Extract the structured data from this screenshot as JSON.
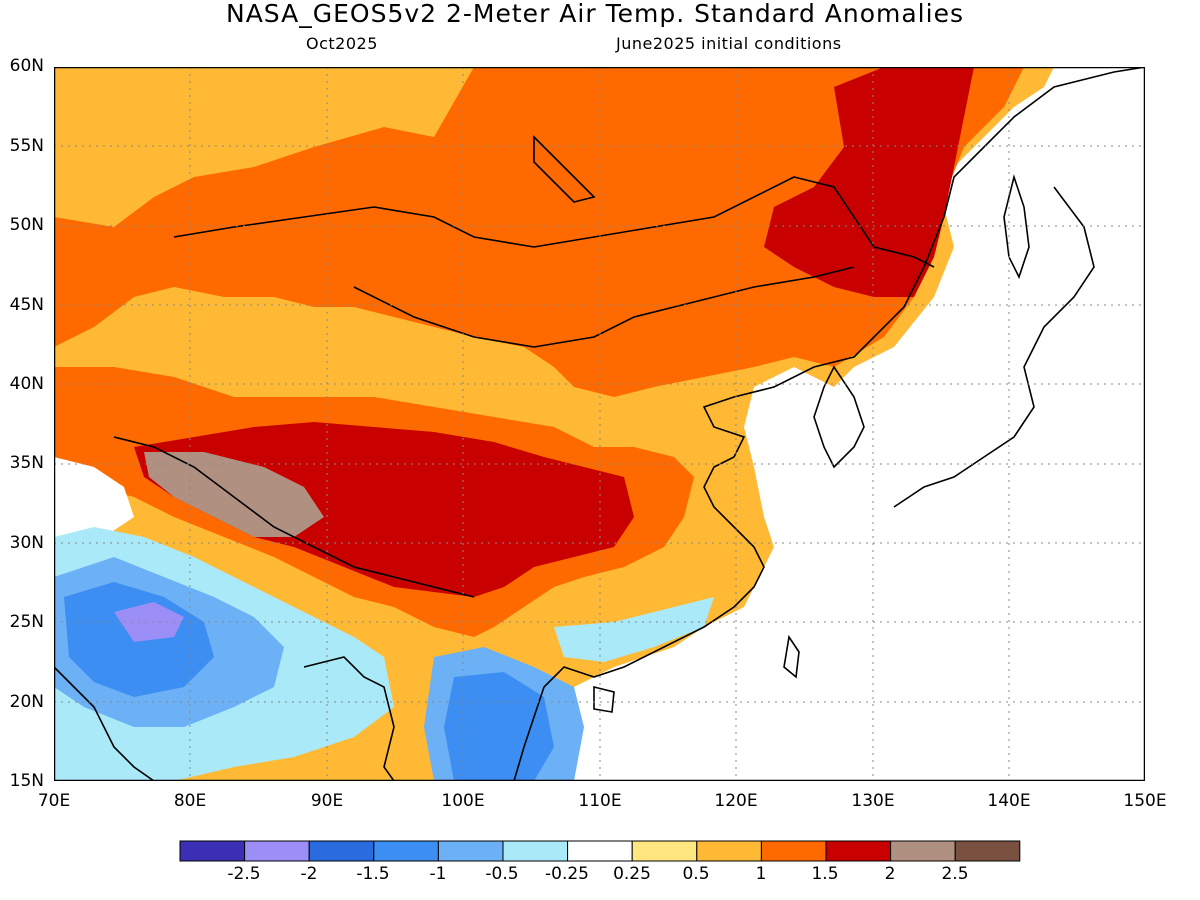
{
  "title": "NASA_GEOS5v2 2-Meter Air Temp. Standard Anomalies",
  "subtitle_left": "Oct2025",
  "subtitle_right": "June2025 initial conditions",
  "lat_labels": [
    "60N",
    "55N",
    "50N",
    "45N",
    "40N",
    "35N",
    "30N",
    "25N",
    "20N",
    "15N"
  ],
  "lon_labels": [
    "70E",
    "80E",
    "90E",
    "100E",
    "110E",
    "120E",
    "130E",
    "140E",
    "150E"
  ],
  "colorbar": {
    "labels": [
      "-2.5",
      "-2",
      "-1.5",
      "-1",
      "-0.5",
      "-0.25",
      "0.25",
      "0.5",
      "1",
      "1.5",
      "2",
      "2.5"
    ],
    "colors": [
      "#3a2fb5",
      "#9b8ff7",
      "#2a6be0",
      "#3c8ef2",
      "#6cb0f5",
      "#aaeaf8",
      "#ffffff",
      "#ffe680",
      "#ffb935",
      "#ff6a00",
      "#c80000",
      "#b09080",
      "#7a5040"
    ]
  }
}
